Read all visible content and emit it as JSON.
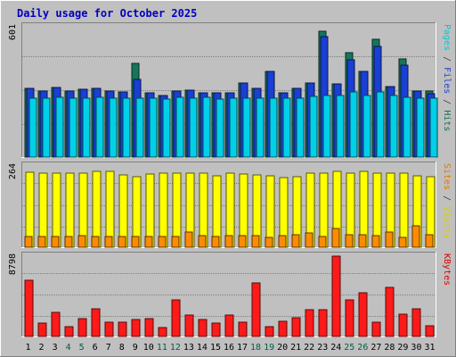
{
  "chart_data": [
    {
      "type": "bar",
      "title": "Daily usage for October 2025",
      "categories": [
        "1",
        "2",
        "3",
        "4",
        "5",
        "6",
        "7",
        "8",
        "9",
        "10",
        "11",
        "12",
        "13",
        "14",
        "15",
        "16",
        "17",
        "18",
        "19",
        "20",
        "21",
        "22",
        "23",
        "24",
        "25",
        "26",
        "27",
        "28",
        "29",
        "30",
        "31"
      ],
      "weekend_categories": [
        "4",
        "5",
        "11",
        "12",
        "18",
        "19",
        "25",
        "26"
      ],
      "ymax_label": "601",
      "ylim": [
        0,
        601
      ],
      "ylabel_parts": [
        {
          "text": "Pages",
          "color": "#00c8d8"
        },
        {
          "text": " / ",
          "color": "#404040"
        },
        {
          "text": "Files",
          "color": "#1a3fd4"
        },
        {
          "text": " / ",
          "color": "#404040"
        },
        {
          "text": "Hits",
          "color": "#107050"
        }
      ],
      "series": [
        {
          "name": "Hits",
          "color": "#16765a",
          "values": [
            318,
            305,
            323,
            303,
            312,
            319,
            305,
            300,
            431,
            296,
            282,
            305,
            309,
            298,
            297,
            296,
            340,
            318,
            395,
            295,
            315,
            340,
            582,
            336,
            480,
            396,
            543,
            326,
            452,
            305,
            304
          ]
        },
        {
          "name": "Files",
          "color": "#1a3fd4",
          "values": [
            318,
            305,
            323,
            303,
            312,
            319,
            305,
            300,
            358,
            296,
            282,
            305,
            309,
            298,
            297,
            296,
            340,
            318,
            395,
            295,
            315,
            340,
            555,
            336,
            450,
            396,
            510,
            326,
            426,
            305,
            294
          ]
        },
        {
          "name": "Pages",
          "color": "#00d0e8",
          "values": [
            272,
            271,
            275,
            270,
            272,
            275,
            272,
            272,
            271,
            272,
            266,
            276,
            270,
            276,
            268,
            271,
            273,
            272,
            272,
            270,
            270,
            278,
            282,
            283,
            300,
            284,
            301,
            282,
            277,
            270,
            272
          ]
        }
      ]
    },
    {
      "type": "bar",
      "categories": [
        "1",
        "2",
        "3",
        "4",
        "5",
        "6",
        "7",
        "8",
        "9",
        "10",
        "11",
        "12",
        "13",
        "14",
        "15",
        "16",
        "17",
        "18",
        "19",
        "20",
        "21",
        "22",
        "23",
        "24",
        "25",
        "26",
        "27",
        "28",
        "29",
        "30",
        "31"
      ],
      "ymax_label": "264",
      "ylim": [
        0,
        264
      ],
      "ylabel_parts": [
        {
          "text": "Sites",
          "color": "#e07800"
        },
        {
          "text": " / ",
          "color": "#404040"
        },
        {
          "text": "Visits",
          "color": "#d8d000"
        }
      ],
      "series": [
        {
          "name": "Visits",
          "color": "#ffff00",
          "values": [
            244,
            240,
            240,
            242,
            242,
            248,
            248,
            235,
            230,
            238,
            242,
            242,
            240,
            242,
            232,
            242,
            238,
            235,
            232,
            225,
            230,
            240,
            242,
            248,
            242,
            248,
            242,
            240,
            240,
            232,
            230
          ]
        },
        {
          "name": "Sites",
          "color": "#ff8c00",
          "values": [
            36,
            36,
            36,
            36,
            38,
            35,
            35,
            36,
            36,
            36,
            34,
            36,
            50,
            38,
            36,
            38,
            38,
            38,
            33,
            38,
            40,
            45,
            36,
            60,
            42,
            40,
            38,
            50,
            33,
            70,
            40
          ]
        }
      ]
    },
    {
      "type": "bar",
      "categories": [
        "1",
        "2",
        "3",
        "4",
        "5",
        "6",
        "7",
        "8",
        "9",
        "10",
        "11",
        "12",
        "13",
        "14",
        "15",
        "16",
        "17",
        "18",
        "19",
        "20",
        "21",
        "22",
        "23",
        "24",
        "25",
        "26",
        "27",
        "28",
        "29",
        "30",
        "31"
      ],
      "ymax_label": "8798",
      "ylim": [
        0,
        8798
      ],
      "ylabel_parts": [
        {
          "text": "KBytes",
          "color": "#e00000"
        }
      ],
      "series": [
        {
          "name": "KBytes",
          "color": "#ff1a1a",
          "values": [
            6150,
            1480,
            2620,
            1080,
            1990,
            3050,
            1530,
            1520,
            1880,
            1930,
            1000,
            4050,
            2320,
            1870,
            1440,
            2380,
            1590,
            5840,
            1040,
            1650,
            2020,
            2960,
            2930,
            8798,
            4000,
            4790,
            1560,
            5400,
            2470,
            3060,
            1140
          ]
        }
      ]
    }
  ]
}
